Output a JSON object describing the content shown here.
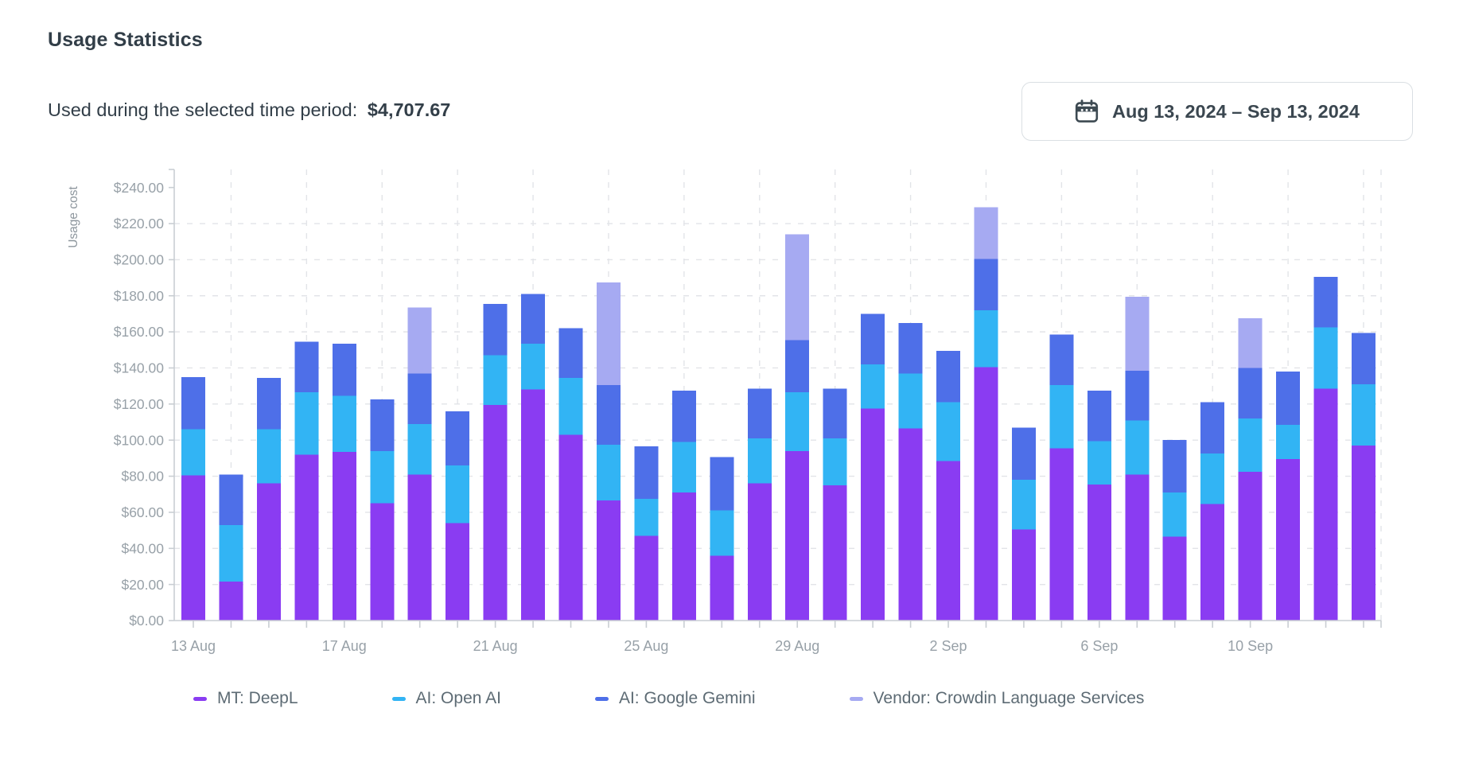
{
  "header": {
    "title": "Usage Statistics",
    "subtitle_label": "Used during the selected time period:",
    "subtitle_amount": "$4,707.67"
  },
  "date_picker": {
    "icon": "calendar-icon",
    "label": "Aug 13, 2024 – Sep 13, 2024"
  },
  "palette": {
    "deepl": "#8a3cf2",
    "openai": "#32b4f4",
    "gemini": "#4e6fe8",
    "vendor": "#a6aaf2",
    "axis_line": "#c9ced3",
    "grid_line": "#e2e4e8",
    "tick_text": "#98a1a8",
    "axis_title_text": "#8d969d",
    "heading_text": "#323e48",
    "legend_text": "#5d6b74"
  },
  "chart_data": {
    "type": "bar",
    "stacked": true,
    "title": "",
    "xlabel": "",
    "ylabel": "Usage cost",
    "ylim": [
      0,
      250
    ],
    "y_tick_step": 20,
    "y_tick_labels": [
      "$0.00",
      "$20.00",
      "$40.00",
      "$60.00",
      "$80.00",
      "$100.00",
      "$120.00",
      "$140.00",
      "$160.00",
      "$180.00",
      "$200.00",
      "$220.00",
      "$240.00"
    ],
    "x_label_every": 4,
    "x_tick_labels_shown": [
      "13 Aug",
      "17 Aug",
      "21 Aug",
      "25 Aug",
      "29 Aug",
      "2 Sep",
      "6 Sep",
      "10 Sep"
    ],
    "grid": "dashed",
    "legend_position": "bottom",
    "categories": [
      "13 Aug",
      "14 Aug",
      "15 Aug",
      "16 Aug",
      "17 Aug",
      "18 Aug",
      "19 Aug",
      "20 Aug",
      "21 Aug",
      "22 Aug",
      "23 Aug",
      "24 Aug",
      "25 Aug",
      "26 Aug",
      "27 Aug",
      "28 Aug",
      "29 Aug",
      "30 Aug",
      "31 Aug",
      "1 Sep",
      "2 Sep",
      "3 Sep",
      "4 Sep",
      "5 Sep",
      "6 Sep",
      "7 Sep",
      "8 Sep",
      "9 Sep",
      "10 Sep",
      "11 Sep",
      "12 Sep",
      "13 Sep"
    ],
    "series": [
      {
        "name": "MT: DeepL",
        "color": "#8a3cf2",
        "values": [
          80.5,
          21.5,
          76,
          92,
          93.5,
          65,
          81,
          54,
          119.5,
          128,
          103,
          66.5,
          47,
          71,
          36,
          76,
          94,
          75,
          117.5,
          106.5,
          88.5,
          140.5,
          50.5,
          95.5,
          75.5,
          81,
          46.5,
          64.5,
          82.5,
          89.5,
          128.5,
          97
        ]
      },
      {
        "name": "AI: Open AI",
        "color": "#32b4f4",
        "values": [
          25.5,
          31.5,
          30,
          34.5,
          31,
          29,
          28,
          32,
          27.5,
          25.5,
          31.5,
          31,
          20.5,
          28,
          25,
          25,
          32.5,
          26,
          24.5,
          30.5,
          32.5,
          31.5,
          27.5,
          35,
          24,
          30,
          24.5,
          28,
          29.5,
          19,
          34,
          34
        ]
      },
      {
        "name": "AI: Google Gemini",
        "color": "#4e6fe8",
        "values": [
          29,
          28,
          28.5,
          28,
          29,
          28.5,
          28,
          30,
          28.5,
          27.5,
          27.5,
          33,
          29,
          28.5,
          29.5,
          27.5,
          29,
          27.5,
          28,
          28,
          28.5,
          28.5,
          29,
          28,
          28,
          27.5,
          29,
          28.5,
          28,
          29.5,
          28,
          28.5
        ]
      },
      {
        "name": "Vendor: Crowdin Language Services",
        "color": "#a6aaf2",
        "values": [
          0,
          0,
          0,
          0,
          0,
          0,
          36.5,
          0,
          0,
          0,
          0,
          57,
          0,
          0,
          0,
          0,
          58.5,
          0,
          0,
          0,
          0,
          28.5,
          0,
          0,
          0,
          41,
          0,
          0,
          27.5,
          0,
          0,
          0
        ]
      }
    ]
  }
}
